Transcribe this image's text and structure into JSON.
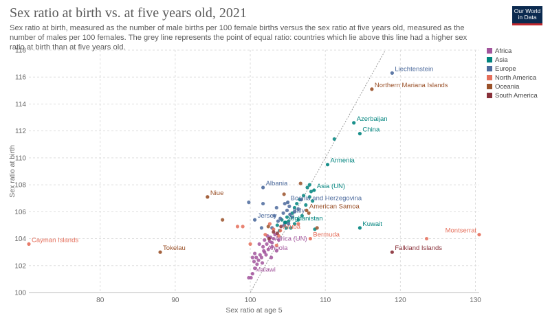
{
  "header": {
    "title": "Sex ratio at birth vs. at five years old, 2021",
    "subtitle": "Sex ratio at birth, measured as the number of male births per 100 female births versus the sex ratio at five years old, measured as the number of males per 100 females. The grey line represents the point of equal ratio: countries which lie above this line had a higher sex ratio at birth than at five years old.",
    "logo_line1": "Our World",
    "logo_line2": "in Data"
  },
  "colors": {
    "Africa": "#a2559c",
    "Asia": "#00847e",
    "Europe": "#4c6a9c",
    "North America": "#e56e5a",
    "Oceania": "#9a5129",
    "South America": "#883039"
  },
  "chart_data": {
    "type": "scatter",
    "title": "Sex ratio at birth vs. at five years old, 2021",
    "xlabel": "Sex ratio at age 5",
    "ylabel": "Sex ratio at birth",
    "xlim": [
      70.5,
      130.5
    ],
    "ylim": [
      100,
      118
    ],
    "xticks": [
      80,
      90,
      100,
      110,
      120,
      130
    ],
    "yticks": [
      100,
      102,
      104,
      106,
      108,
      110,
      112,
      114,
      116,
      118
    ],
    "grid": true,
    "legend_position": "right",
    "reference_line": "y = x",
    "legend": [
      "Africa",
      "Asia",
      "Europe",
      "North America",
      "Oceania",
      "South America"
    ],
    "labeled_points": [
      {
        "label": "Liechtenstein",
        "region": "Europe",
        "x": 118.9,
        "y": 116.3
      },
      {
        "label": "Northern Mariana Islands",
        "region": "Oceania",
        "x": 116.2,
        "y": 115.1
      },
      {
        "label": "Azerbaijan",
        "region": "Asia",
        "x": 113.8,
        "y": 112.6
      },
      {
        "label": "China",
        "region": "Asia",
        "x": 114.6,
        "y": 111.8
      },
      {
        "label": "Armenia",
        "region": "Asia",
        "x": 110.3,
        "y": 109.5
      },
      {
        "label": "Asia (UN)",
        "region": "Asia",
        "x": 108.5,
        "y": 107.6
      },
      {
        "label": "Albania",
        "region": "Europe",
        "x": 101.7,
        "y": 107.8
      },
      {
        "label": "Niue",
        "region": "Oceania",
        "x": 94.3,
        "y": 107.1
      },
      {
        "label": "Bosnia and Herzegovina",
        "region": "Europe",
        "x": 105.0,
        "y": 106.7
      },
      {
        "label": "American Samoa",
        "region": "Oceania",
        "x": 107.5,
        "y": 106.1
      },
      {
        "label": "Italy",
        "region": "Europe",
        "x": 105.3,
        "y": 105.8
      },
      {
        "label": "Jersey",
        "region": "Europe",
        "x": 100.6,
        "y": 105.4
      },
      {
        "label": "Afghanistan",
        "region": "Asia",
        "x": 104.7,
        "y": 105.2
      },
      {
        "label": "Kuwait",
        "region": "Asia",
        "x": 114.6,
        "y": 104.8
      },
      {
        "label": "Montserrat",
        "region": "North America",
        "x": 130.5,
        "y": 104.3
      },
      {
        "label": "Aruba",
        "region": "North America",
        "x": 104.0,
        "y": 104.6
      },
      {
        "label": "Bermuda",
        "region": "North America",
        "x": 108.0,
        "y": 104.0
      },
      {
        "label": "Cayman Islands",
        "region": "North America",
        "x": 70.5,
        "y": 103.6
      },
      {
        "label": "Africa (UN)",
        "region": "Africa",
        "x": 102.9,
        "y": 103.7
      },
      {
        "label": "Tokelau",
        "region": "Oceania",
        "x": 88.0,
        "y": 103.0
      },
      {
        "label": "Falkland Islands",
        "region": "South America",
        "x": 118.9,
        "y": 103.0
      },
      {
        "label": "Angola",
        "region": "Africa",
        "x": 101.9,
        "y": 103.0
      },
      {
        "label": "Malawi",
        "region": "Africa",
        "x": 100.3,
        "y": 101.4
      }
    ],
    "points": [
      {
        "region": "Africa",
        "x": 99.8,
        "y": 101.1
      },
      {
        "region": "Africa",
        "x": 100.1,
        "y": 101.1
      },
      {
        "region": "Africa",
        "x": 100.6,
        "y": 101.8
      },
      {
        "region": "Africa",
        "x": 100.9,
        "y": 102.1
      },
      {
        "region": "Africa",
        "x": 100.5,
        "y": 102.3
      },
      {
        "region": "Africa",
        "x": 100.8,
        "y": 102.6
      },
      {
        "region": "Africa",
        "x": 101.1,
        "y": 102.4
      },
      {
        "region": "Africa",
        "x": 101.3,
        "y": 102.8
      },
      {
        "region": "Africa",
        "x": 100.6,
        "y": 102.9
      },
      {
        "region": "Africa",
        "x": 101.5,
        "y": 102.6
      },
      {
        "region": "Africa",
        "x": 101.8,
        "y": 103.1
      },
      {
        "region": "Africa",
        "x": 102.1,
        "y": 102.8
      },
      {
        "region": "Africa",
        "x": 101.7,
        "y": 103.4
      },
      {
        "region": "Africa",
        "x": 102.4,
        "y": 103.2
      },
      {
        "region": "Africa",
        "x": 102.2,
        "y": 103.6
      },
      {
        "region": "Africa",
        "x": 102.6,
        "y": 103.8
      },
      {
        "region": "Africa",
        "x": 102.9,
        "y": 103.4
      },
      {
        "region": "Africa",
        "x": 102.7,
        "y": 104.1
      },
      {
        "region": "Africa",
        "x": 103.1,
        "y": 104.0
      },
      {
        "region": "Africa",
        "x": 103.3,
        "y": 104.3
      },
      {
        "region": "Africa",
        "x": 102.3,
        "y": 104.2
      },
      {
        "region": "Africa",
        "x": 101.9,
        "y": 103.9
      },
      {
        "region": "Africa",
        "x": 101.6,
        "y": 102.2
      },
      {
        "region": "Africa",
        "x": 102.8,
        "y": 102.6
      },
      {
        "region": "Africa",
        "x": 103.5,
        "y": 103.1
      },
      {
        "region": "Africa",
        "x": 101.2,
        "y": 103.6
      },
      {
        "region": "Africa",
        "x": 100.3,
        "y": 102.6
      },
      {
        "region": "Africa",
        "x": 103.8,
        "y": 103.9
      },
      {
        "region": "Asia",
        "x": 104.6,
        "y": 105.2
      },
      {
        "region": "Asia",
        "x": 104.2,
        "y": 105.4
      },
      {
        "region": "Asia",
        "x": 104.9,
        "y": 105.6
      },
      {
        "region": "Asia",
        "x": 105.1,
        "y": 105.3
      },
      {
        "region": "Asia",
        "x": 105.6,
        "y": 105.9
      },
      {
        "region": "Asia",
        "x": 105.9,
        "y": 106.3
      },
      {
        "region": "Asia",
        "x": 106.2,
        "y": 106.6
      },
      {
        "region": "Asia",
        "x": 106.6,
        "y": 106.9
      },
      {
        "region": "Asia",
        "x": 107.1,
        "y": 107.2
      },
      {
        "region": "Asia",
        "x": 107.6,
        "y": 107.8
      },
      {
        "region": "Asia",
        "x": 107.9,
        "y": 108.0
      },
      {
        "region": "Asia",
        "x": 108.1,
        "y": 107.5
      },
      {
        "region": "Asia",
        "x": 107.4,
        "y": 106.5
      },
      {
        "region": "Asia",
        "x": 106.9,
        "y": 105.7
      },
      {
        "region": "Asia",
        "x": 105.4,
        "y": 104.8
      },
      {
        "region": "Asia",
        "x": 104.8,
        "y": 104.8
      },
      {
        "region": "Asia",
        "x": 105.9,
        "y": 105.1
      },
      {
        "region": "Asia",
        "x": 108.6,
        "y": 104.7
      },
      {
        "region": "Asia",
        "x": 103.6,
        "y": 105.0
      },
      {
        "region": "Asia",
        "x": 103.9,
        "y": 104.6
      },
      {
        "region": "Asia",
        "x": 106.4,
        "y": 105.4
      },
      {
        "region": "Asia",
        "x": 111.2,
        "y": 111.4
      },
      {
        "region": "Asia",
        "x": 107.9,
        "y": 107.1
      },
      {
        "region": "Asia",
        "x": 108.3,
        "y": 106.8
      },
      {
        "region": "Europe",
        "x": 104.4,
        "y": 105.9
      },
      {
        "region": "Europe",
        "x": 104.9,
        "y": 106.1
      },
      {
        "region": "Europe",
        "x": 105.2,
        "y": 106.4
      },
      {
        "region": "Europe",
        "x": 105.6,
        "y": 105.6
      },
      {
        "region": "Europe",
        "x": 104.0,
        "y": 105.5
      },
      {
        "region": "Europe",
        "x": 103.7,
        "y": 105.3
      },
      {
        "region": "Europe",
        "x": 104.5,
        "y": 105.0
      },
      {
        "region": "Europe",
        "x": 105.9,
        "y": 106.0
      },
      {
        "region": "Europe",
        "x": 106.4,
        "y": 106.2
      },
      {
        "region": "Europe",
        "x": 103.5,
        "y": 106.3
      },
      {
        "region": "Europe",
        "x": 104.6,
        "y": 106.6
      },
      {
        "region": "Europe",
        "x": 101.7,
        "y": 106.6
      },
      {
        "region": "Europe",
        "x": 99.8,
        "y": 106.7
      },
      {
        "region": "Europe",
        "x": 105.1,
        "y": 105.1
      },
      {
        "region": "Europe",
        "x": 101.5,
        "y": 104.8
      },
      {
        "region": "Europe",
        "x": 103.2,
        "y": 105.7
      },
      {
        "region": "Europe",
        "x": 102.9,
        "y": 104.8
      },
      {
        "region": "Europe",
        "x": 106.8,
        "y": 106.9
      },
      {
        "region": "North America",
        "x": 103.8,
        "y": 104.2
      },
      {
        "region": "North America",
        "x": 103.1,
        "y": 104.7
      },
      {
        "region": "North America",
        "x": 102.0,
        "y": 104.3
      },
      {
        "region": "North America",
        "x": 102.6,
        "y": 105.1
      },
      {
        "region": "North America",
        "x": 99.0,
        "y": 104.9
      },
      {
        "region": "North America",
        "x": 98.3,
        "y": 104.9
      },
      {
        "region": "North America",
        "x": 106.4,
        "y": 105.1
      },
      {
        "region": "North America",
        "x": 123.5,
        "y": 104.0
      },
      {
        "region": "North America",
        "x": 100.0,
        "y": 103.6
      },
      {
        "region": "North America",
        "x": 103.5,
        "y": 103.5
      },
      {
        "region": "Oceania",
        "x": 96.3,
        "y": 105.4
      },
      {
        "region": "Oceania",
        "x": 104.5,
        "y": 107.3
      },
      {
        "region": "Oceania",
        "x": 106.7,
        "y": 108.1
      },
      {
        "region": "Oceania",
        "x": 108.9,
        "y": 104.8
      },
      {
        "region": "Oceania",
        "x": 107.8,
        "y": 105.9
      },
      {
        "region": "Oceania",
        "x": 102.4,
        "y": 104.9
      },
      {
        "region": "South America",
        "x": 103.1,
        "y": 104.5
      },
      {
        "region": "South America",
        "x": 104.1,
        "y": 104.9
      },
      {
        "region": "South America",
        "x": 102.5,
        "y": 104.0
      },
      {
        "region": "South America",
        "x": 103.6,
        "y": 104.4
      }
    ]
  }
}
